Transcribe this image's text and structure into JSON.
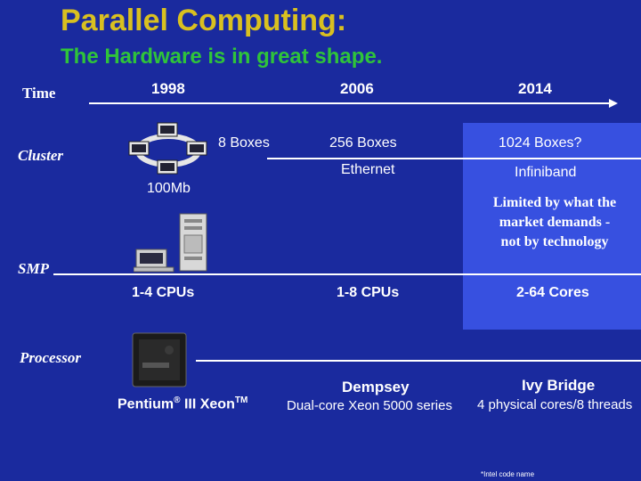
{
  "slide": {
    "title": "Parallel Computing:",
    "subtitle": "The Hardware is in great shape."
  },
  "timeline": {
    "label": "Time",
    "years": [
      "1998",
      "2006",
      "2014"
    ]
  },
  "rows": {
    "cluster": {
      "label": "Cluster",
      "boxes": [
        "8 Boxes",
        "256 Boxes",
        "1024 Boxes?"
      ],
      "network": [
        "100Mb",
        "Ethernet",
        "Infiniband"
      ],
      "note": "Limited by what the market demands - not by technology"
    },
    "smp": {
      "label": "SMP",
      "cpus": [
        "1-4 CPUs",
        "1-8 CPUs",
        "2-64 Cores"
      ]
    },
    "processor": {
      "label": "Processor",
      "p1998_name": "Pentium",
      "p1998_reg": "®",
      "p1998_model": " III Xeon",
      "p1998_tm": "TM",
      "p2006_name": "Dempsey",
      "p2006_desc": "Dual-core Xeon 5000 series",
      "p2014_name": "Ivy Bridge",
      "p2014_desc": "4 physical cores/8 threads"
    }
  },
  "footnote": "*Intel code name",
  "colors": {
    "background": "#1a2a9e",
    "title": "#d9c020",
    "subtitle": "#2fc43a",
    "highlight_panel": "#3750e0",
    "text": "#ffffff"
  }
}
